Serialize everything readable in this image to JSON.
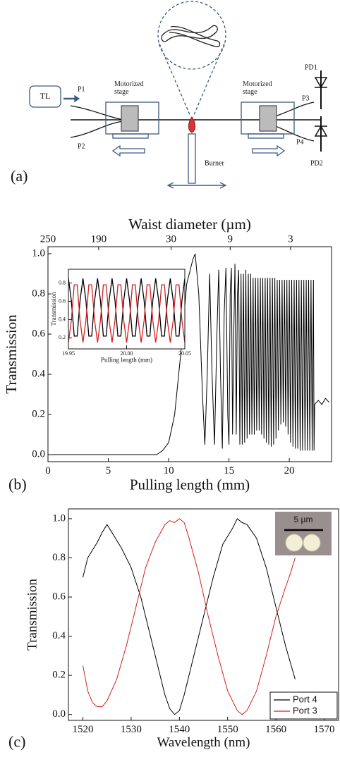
{
  "diagram": {
    "panel_label": "(a)",
    "tl": "TL",
    "p1": "P1",
    "p2": "P2",
    "p3": "P3",
    "p4": "P4",
    "stage_left": "Motorized stage",
    "stage_right": "Motorized stage",
    "pd1": "PD1",
    "pd2": "PD2",
    "burner": "Burner"
  },
  "chart_data": [
    {
      "type": "line",
      "panel_label": "(b)",
      "xlabel": "Pulling length (mm)",
      "ylabel": "Transmission",
      "x2label": "Waist diameter (µm)",
      "xlim": [
        0,
        23.5
      ],
      "ylim": [
        -0.035,
        1.035
      ],
      "xticks": [
        0,
        5,
        10,
        15,
        20
      ],
      "yticks": [
        {
          "value": 0,
          "label": "0.0"
        },
        0.2,
        0.4,
        0.6,
        0.8,
        {
          "value": 1,
          "label": "1.0"
        }
      ],
      "x2ticks": [
        {
          "value": 0,
          "label": "250"
        },
        {
          "value": 4.2,
          "label": "190"
        },
        {
          "value": 10.2,
          "label": "30"
        },
        {
          "value": 15.1,
          "label": "9"
        },
        {
          "value": 20.1,
          "label": "3"
        }
      ],
      "x": [
        0,
        9,
        9.5,
        10,
        10.5,
        11,
        11.5,
        12,
        12.2,
        12.5,
        12.8,
        13.0,
        13.2,
        13.4,
        13.6,
        13.8,
        14.0,
        14.15,
        14.3,
        14.45,
        14.6,
        14.75,
        14.9,
        15.0,
        15.1,
        15.2,
        15.3,
        15.4,
        15.5,
        15.6,
        15.7,
        15.8,
        15.9,
        16.0,
        16.1,
        16.2,
        16.3,
        16.4,
        16.5,
        16.6,
        16.7,
        16.8,
        16.9,
        17.0,
        17.1,
        17.2,
        17.3,
        17.4,
        17.5,
        17.6,
        17.7,
        17.8,
        17.9,
        18.0,
        18.1,
        18.2,
        18.3,
        18.4,
        18.5,
        18.6,
        18.7,
        18.8,
        18.9,
        19.0,
        19.1,
        19.2,
        19.3,
        19.4,
        19.5,
        19.6,
        19.7,
        19.8,
        19.9,
        20.0,
        20.1,
        20.2,
        20.3,
        20.4,
        20.5,
        20.6,
        20.7,
        20.8,
        20.9,
        21.0,
        21.1,
        21.2,
        21.3,
        21.4,
        21.5,
        21.6,
        21.7,
        21.8,
        21.9,
        22.0,
        22.05,
        22.1,
        22.4,
        22.7,
        23.0,
        23.3
      ],
      "series": [
        {
          "color": "#000000",
          "values": [
            0,
            0,
            0.02,
            0.06,
            0.2,
            0.5,
            0.85,
            0.97,
            1.0,
            0.8,
            0.3,
            0.05,
            0.4,
            0.9,
            0.4,
            0.05,
            0.6,
            0.92,
            0.4,
            0.03,
            0.7,
            0.93,
            0.2,
            0.05,
            0.8,
            0.93,
            0.1,
            0.6,
            0.95,
            0.1,
            0.8,
            0.92,
            0.05,
            0.9,
            0.05,
            0.9,
            0.06,
            0.92,
            0.08,
            0.9,
            0.1,
            0.9,
            0.1,
            0.88,
            0.1,
            0.88,
            0.12,
            0.88,
            0.12,
            0.88,
            0.1,
            0.88,
            0.08,
            0.88,
            0.06,
            0.88,
            0.05,
            0.88,
            0.04,
            0.88,
            0.05,
            0.88,
            0.08,
            0.87,
            0.12,
            0.87,
            0.15,
            0.87,
            0.16,
            0.87,
            0.14,
            0.87,
            0.1,
            0.87,
            0.06,
            0.87,
            0.04,
            0.87,
            0.03,
            0.87,
            0.03,
            0.87,
            0.02,
            0.87,
            0.02,
            0.87,
            0.02,
            0.87,
            0.02,
            0.87,
            0.02,
            0.87,
            0.02,
            0.87,
            0.02,
            0.25,
            0.27,
            0.25,
            0.28,
            0.26
          ]
        }
      ]
    },
    {
      "type": "line",
      "xlabel": "Pulling length (mm)",
      "ylabel": "Transmission",
      "xlim": [
        19.95,
        20.05
      ],
      "ylim": [
        0.08,
        0.95
      ],
      "xticks": [
        19.95,
        {
          "value": 20,
          "label": "20.00"
        },
        20.05
      ],
      "yticks": [
        0.2,
        0.4,
        0.6,
        0.8
      ],
      "x": [
        19.95,
        19.9525,
        19.955,
        19.9575,
        19.96,
        19.9625,
        19.965,
        19.9675,
        19.97,
        19.9725,
        19.975,
        19.9775,
        19.98,
        19.9825,
        19.985,
        19.9875,
        19.99,
        19.9925,
        19.995,
        19.9975,
        20.0,
        20.0025,
        20.005,
        20.0075,
        20.01,
        20.0125,
        20.015,
        20.0175,
        20.02,
        20.0225,
        20.025,
        20.0275,
        20.03,
        20.0325,
        20.035,
        20.0375,
        20.04,
        20.0425,
        20.045,
        20.0475,
        20.05
      ],
      "series": [
        {
          "color": "#000000",
          "values": [
            0.85,
            0.61,
            0.22,
            0.22,
            0.61,
            0.85,
            0.61,
            0.22,
            0.22,
            0.61,
            0.85,
            0.61,
            0.22,
            0.22,
            0.61,
            0.85,
            0.61,
            0.22,
            0.22,
            0.61,
            0.85,
            0.61,
            0.22,
            0.22,
            0.61,
            0.85,
            0.61,
            0.22,
            0.22,
            0.61,
            0.85,
            0.61,
            0.22,
            0.22,
            0.61,
            0.85,
            0.61,
            0.22,
            0.22,
            0.61,
            0.85
          ]
        },
        {
          "color": "#d42020",
          "values": [
            0.15,
            0.39,
            0.78,
            0.78,
            0.39,
            0.15,
            0.39,
            0.78,
            0.78,
            0.39,
            0.15,
            0.39,
            0.78,
            0.78,
            0.39,
            0.15,
            0.39,
            0.78,
            0.78,
            0.39,
            0.15,
            0.39,
            0.78,
            0.78,
            0.39,
            0.15,
            0.39,
            0.78,
            0.78,
            0.39,
            0.15,
            0.39,
            0.78,
            0.78,
            0.39,
            0.15,
            0.39,
            0.78,
            0.78,
            0.39,
            0.15
          ]
        }
      ]
    },
    {
      "type": "line",
      "panel_label": "(c)",
      "xlabel": "Wavelength (nm)",
      "ylabel": "Transmission",
      "xlim": [
        1517,
        1573
      ],
      "ylim": [
        -0.03,
        1.05
      ],
      "xticks": [
        1520,
        1530,
        1540,
        1550,
        1560,
        1570
      ],
      "yticks": [
        {
          "value": 0,
          "label": "0.0"
        },
        0.2,
        0.4,
        0.6,
        0.8,
        {
          "value": 1,
          "label": "1.0"
        }
      ],
      "legend": "lower right",
      "scale_bar_label": "5 µm",
      "series": [
        {
          "name": "Port 4",
          "color": "#000000",
          "x": [
            1520,
            1521,
            1523,
            1524,
            1525,
            1526,
            1528,
            1530,
            1532,
            1534,
            1536,
            1537,
            1538,
            1539,
            1540,
            1541,
            1543,
            1545,
            1547,
            1549,
            1551,
            1552,
            1553,
            1554,
            1556,
            1558,
            1560,
            1562,
            1564
          ],
          "values": [
            0.7,
            0.8,
            0.88,
            0.93,
            0.97,
            0.93,
            0.85,
            0.75,
            0.6,
            0.4,
            0.2,
            0.1,
            0.03,
            0.0,
            0.02,
            0.1,
            0.3,
            0.5,
            0.7,
            0.87,
            0.95,
            1.0,
            0.98,
            0.97,
            0.9,
            0.75,
            0.55,
            0.35,
            0.18
          ]
        },
        {
          "name": "Port 3",
          "color": "#d42020",
          "x": [
            1520,
            1521,
            1522,
            1523,
            1524,
            1525,
            1527,
            1529,
            1531,
            1533,
            1535,
            1537,
            1538,
            1539,
            1540,
            1541,
            1542,
            1544,
            1546,
            1548,
            1550,
            1552,
            1553,
            1554,
            1556,
            1558,
            1560,
            1562,
            1563,
            1564
          ],
          "values": [
            0.25,
            0.12,
            0.06,
            0.04,
            0.04,
            0.07,
            0.18,
            0.35,
            0.55,
            0.75,
            0.88,
            0.97,
            0.99,
            0.98,
            1.0,
            0.98,
            0.9,
            0.72,
            0.5,
            0.3,
            0.12,
            0.02,
            0.0,
            0.02,
            0.12,
            0.3,
            0.5,
            0.65,
            0.72,
            0.8
          ]
        }
      ]
    }
  ]
}
